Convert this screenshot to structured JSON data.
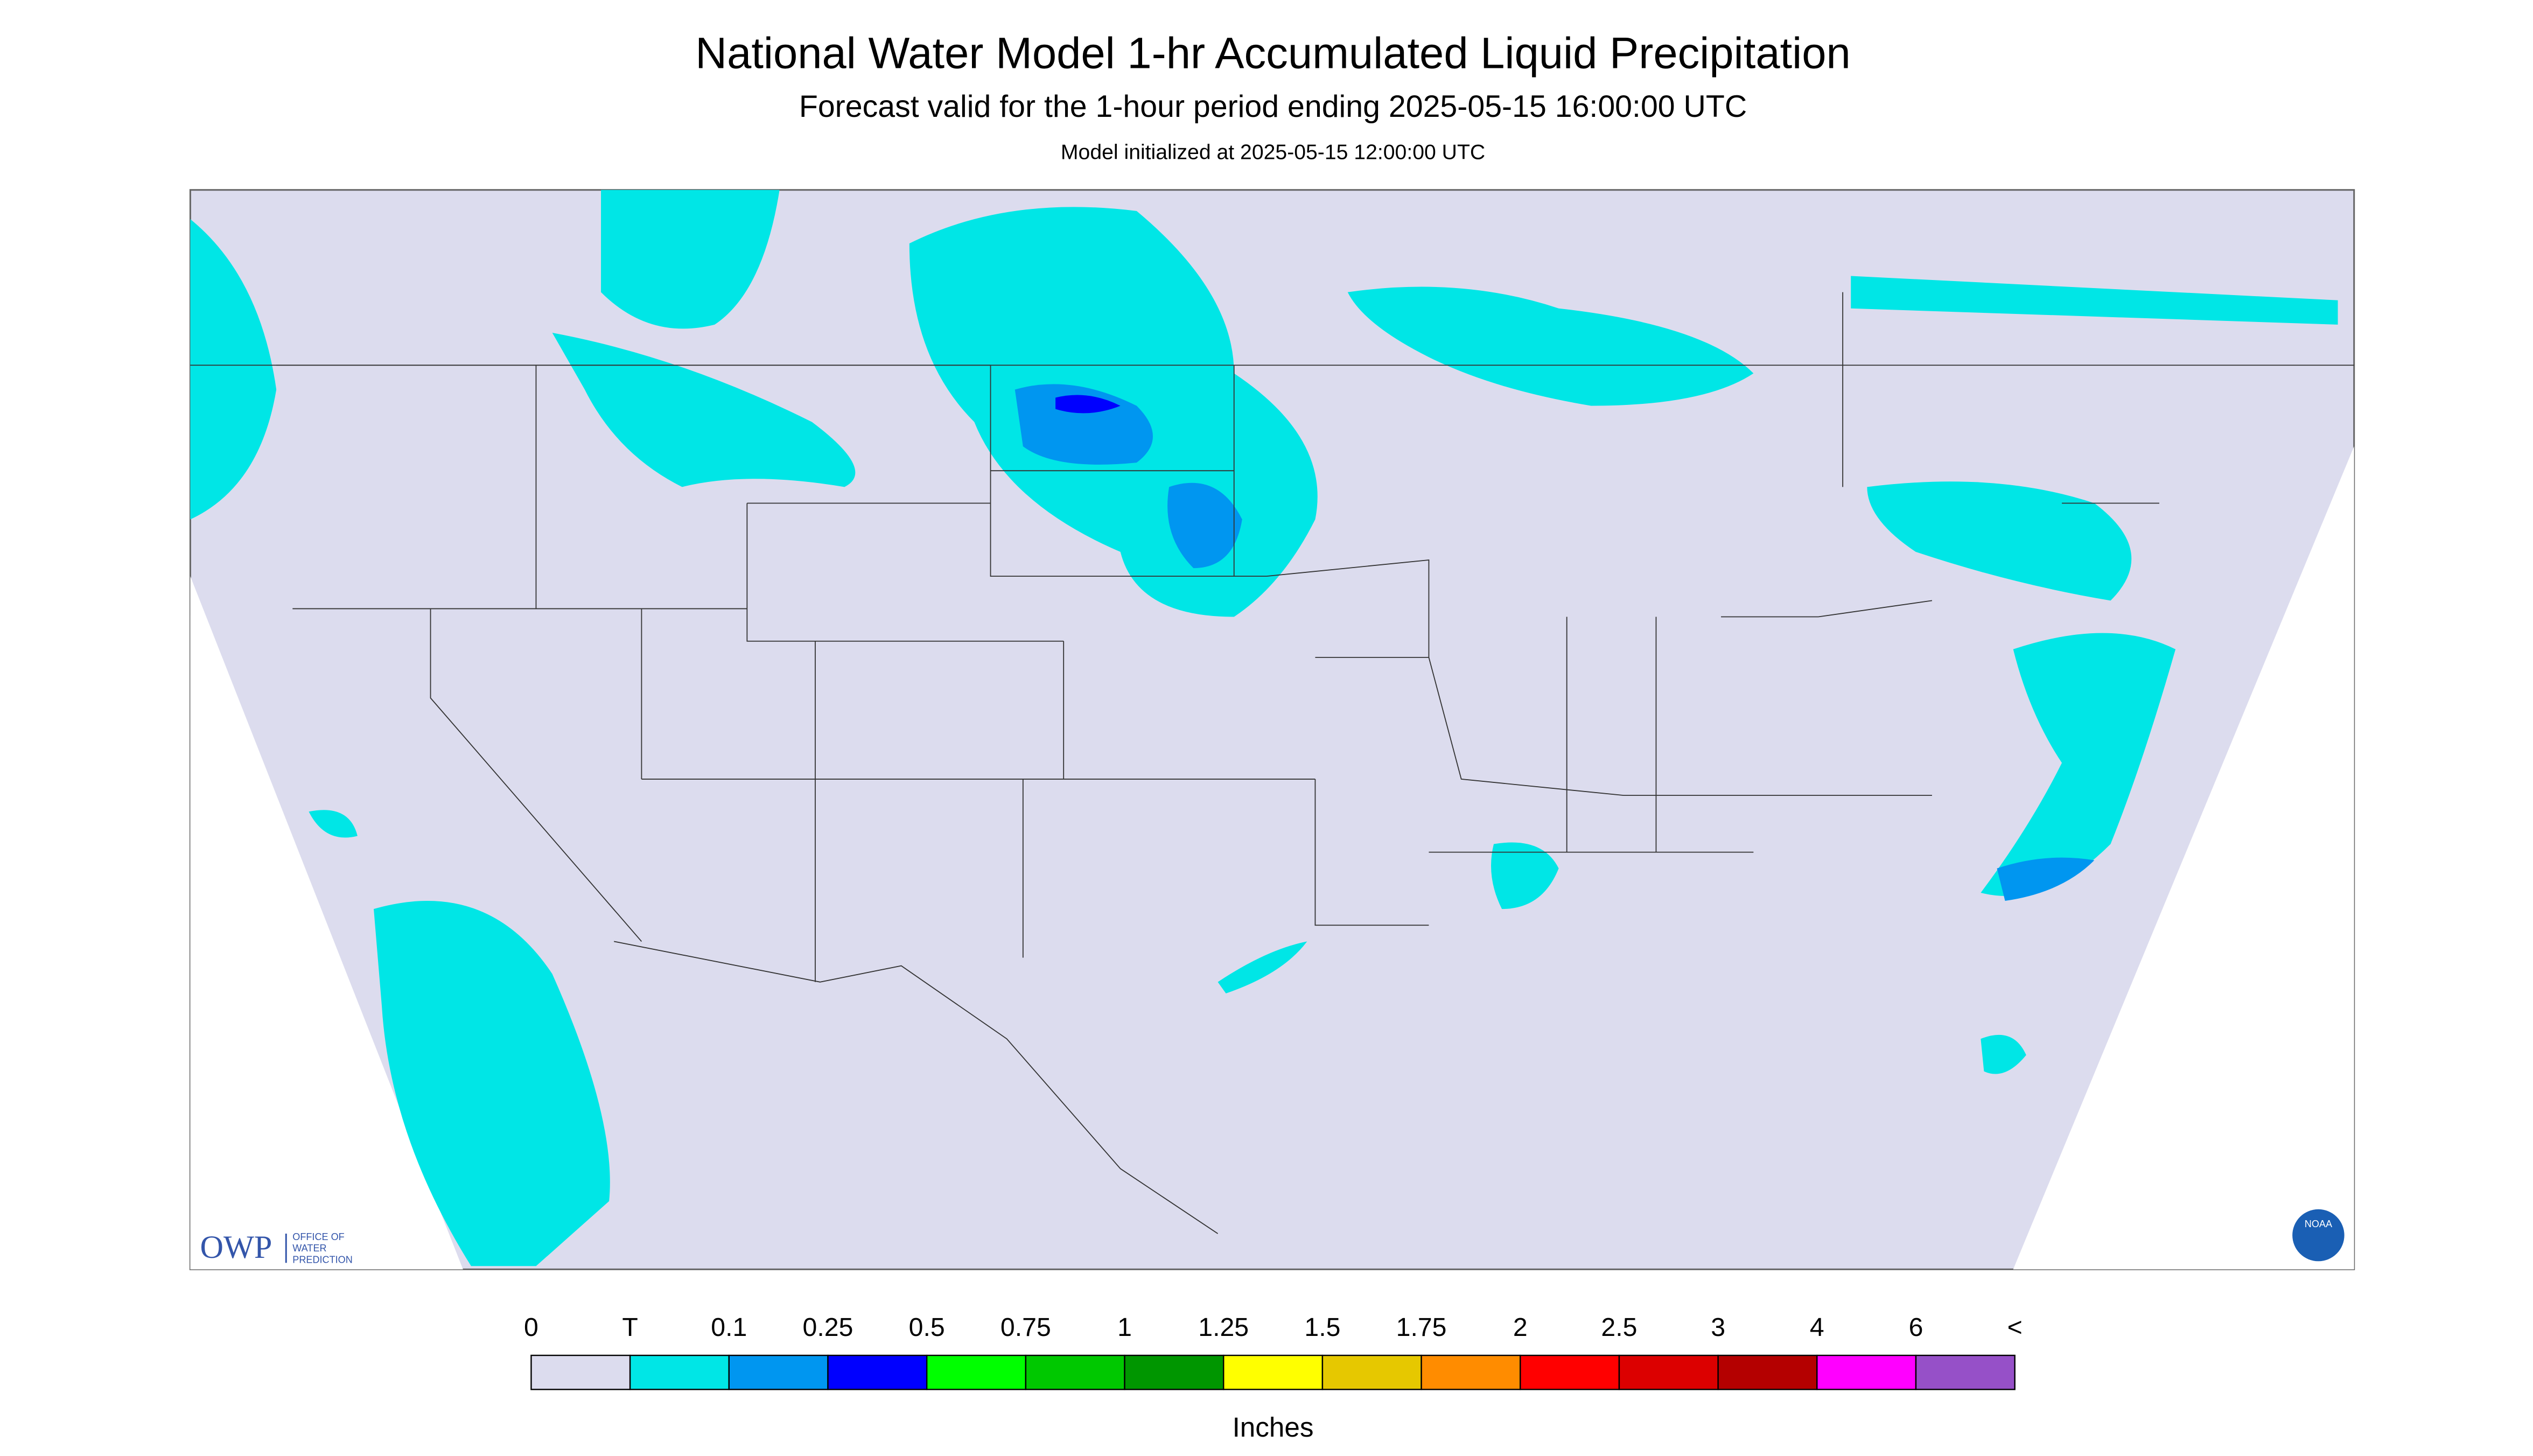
{
  "header": {
    "title": "National Water Model 1-hr Accumulated Liquid Precipitation",
    "subtitle": "Forecast valid for the 1-hour period ending 2025-05-15 16:00:00 UTC",
    "note": "Model initialized at 2025-05-15 12:00:00 UTC"
  },
  "logo": {
    "abbr": "OWP",
    "lines": [
      "OFFICE OF",
      "WATER",
      "PREDICTION"
    ],
    "noaa": "NOAA"
  },
  "legend": {
    "labels": [
      "0",
      "T",
      "0.1",
      "0.25",
      "0.5",
      "0.75",
      "1",
      "1.25",
      "1.5",
      "1.75",
      "2",
      "2.5",
      "3",
      "4",
      "6",
      "<"
    ],
    "colors": [
      "#dcdcee",
      "#00e6e6",
      "#0096f0",
      "#0000ff",
      "#00ff00",
      "#00c800",
      "#009600",
      "#ffff00",
      "#e6c800",
      "#ff8c00",
      "#ff0000",
      "#dc0000",
      "#b40000",
      "#ff00ff",
      "#9650c8"
    ],
    "units": "Inches"
  }
}
